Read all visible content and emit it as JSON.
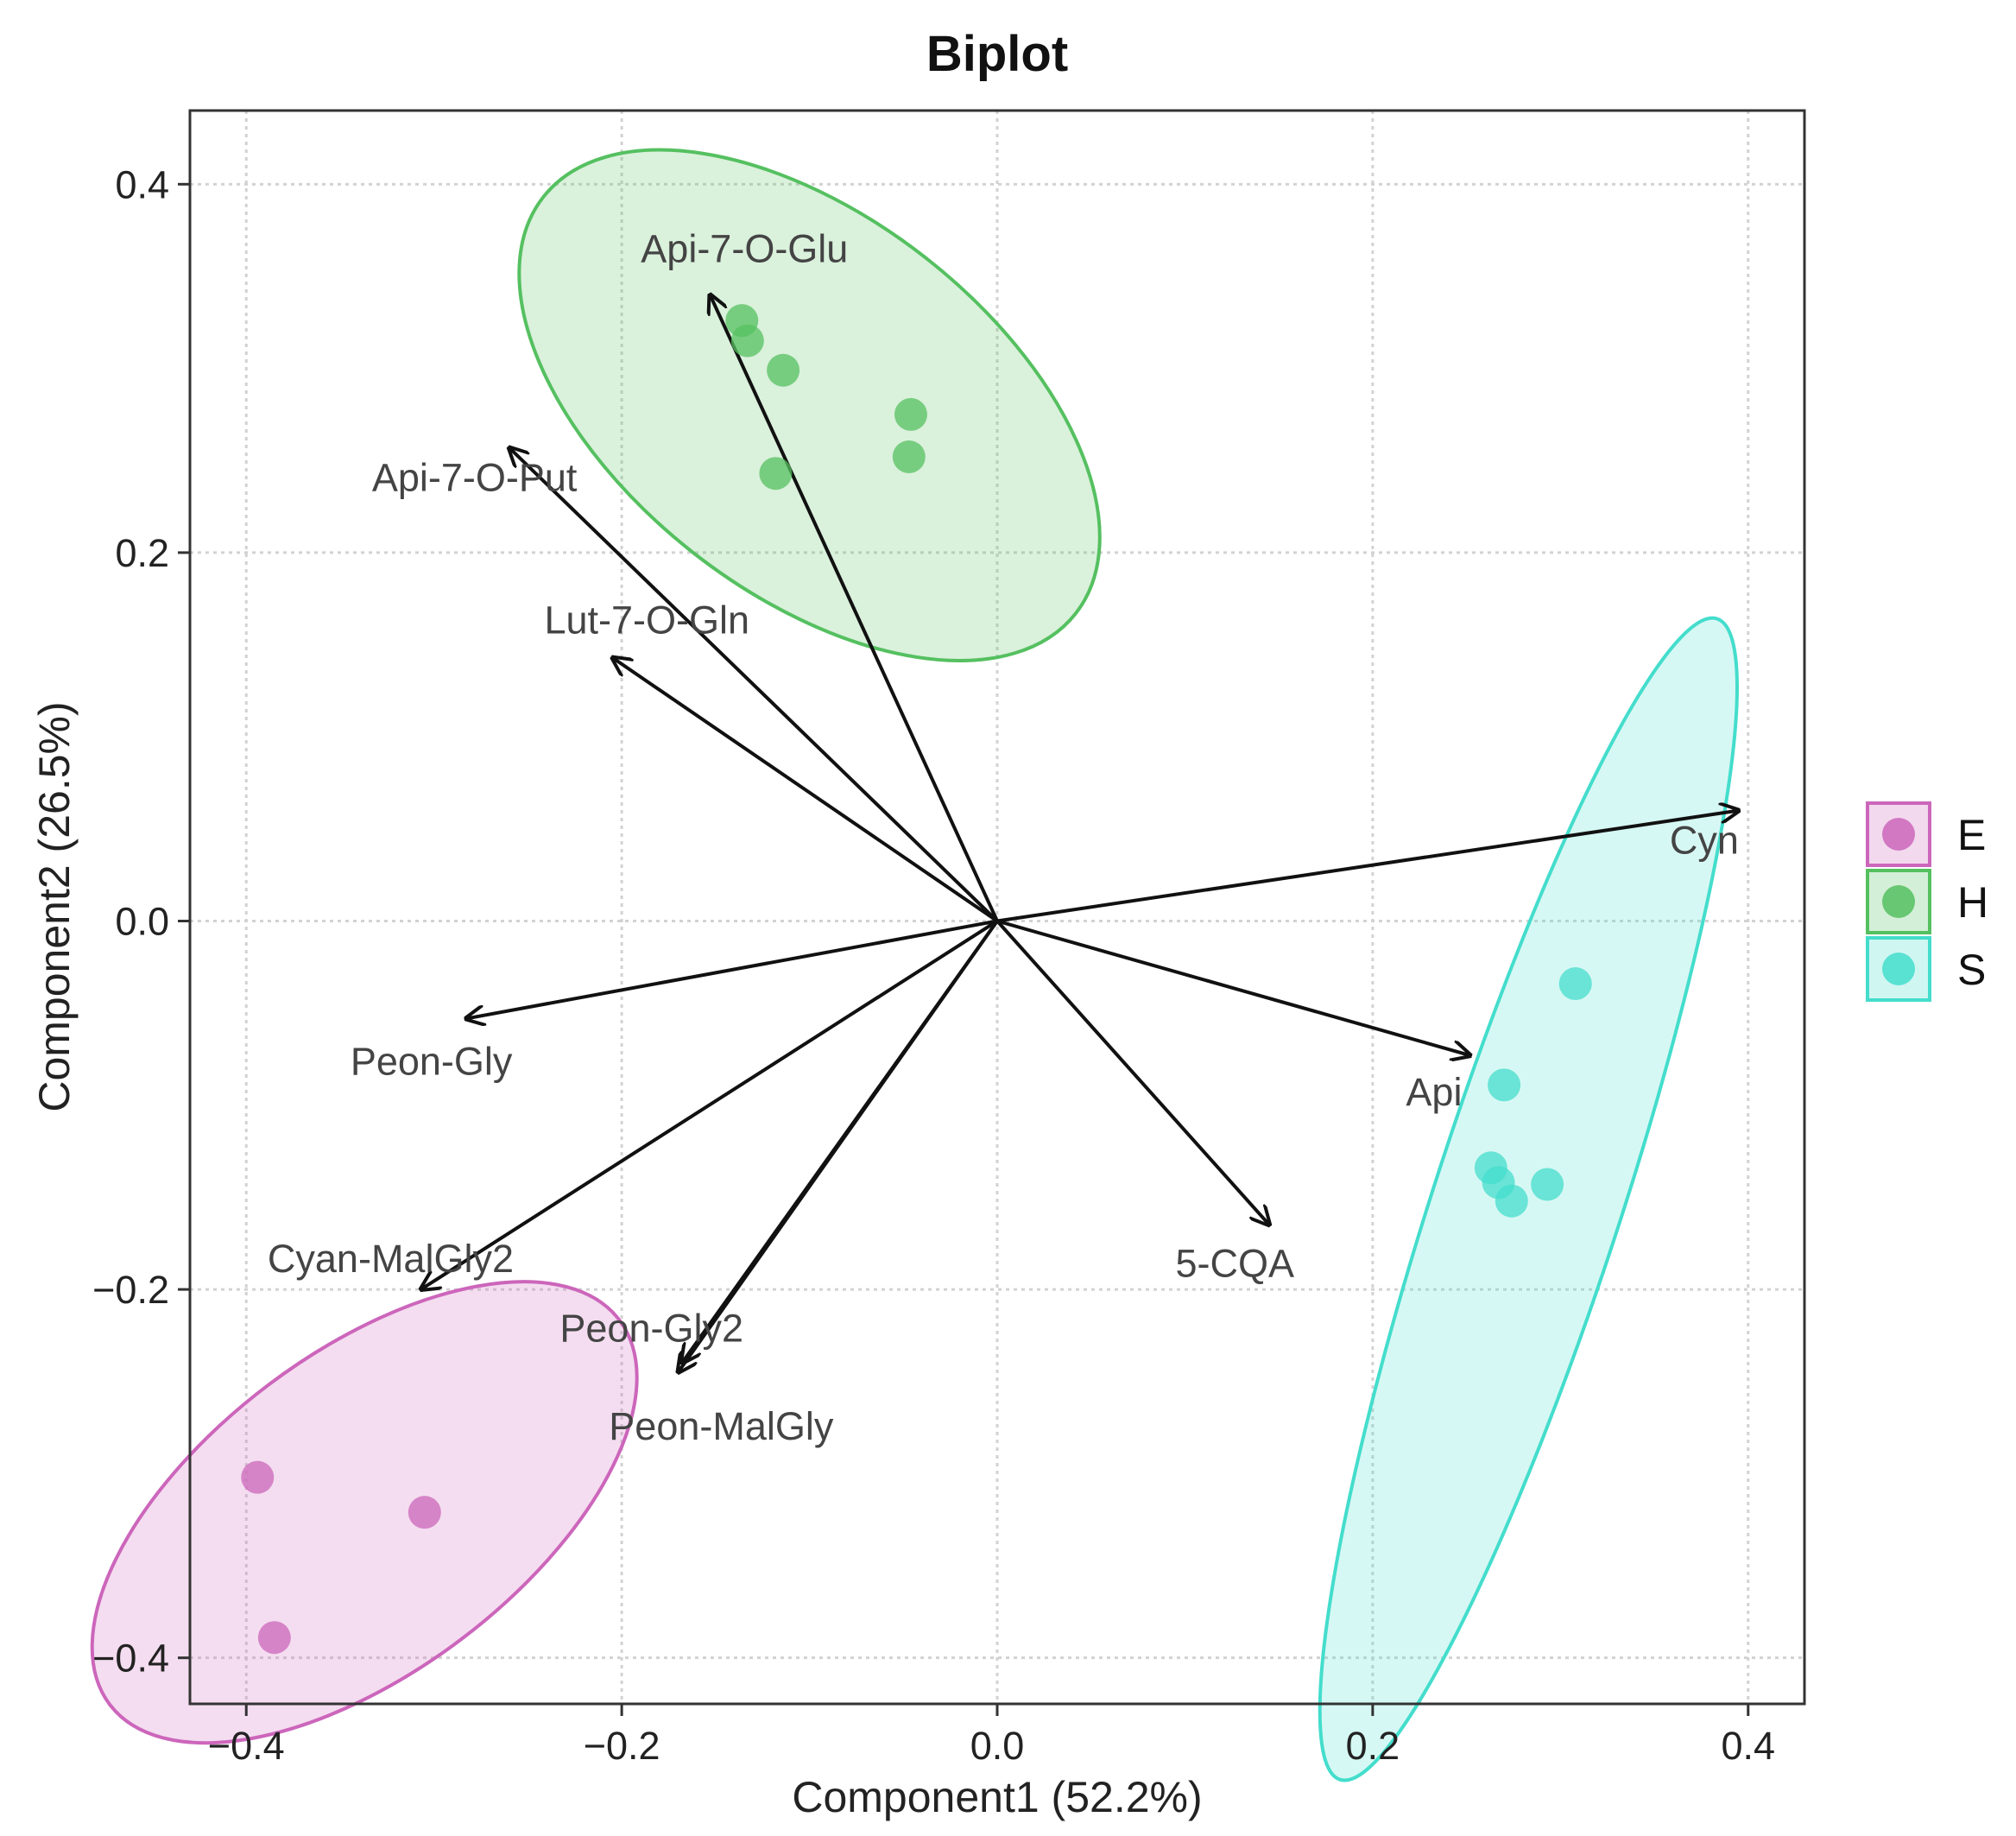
{
  "chart_data": {
    "type": "scatter",
    "title": "Biplot",
    "xlabel": "Component1 (52.2%)",
    "ylabel": "Component2 (26.5%)",
    "xlim": [
      -0.43,
      0.43
    ],
    "ylim": [
      -0.425,
      0.44
    ],
    "xticks": [
      -0.4,
      -0.2,
      0.0,
      0.2,
      0.4
    ],
    "yticks": [
      -0.4,
      -0.2,
      0.0,
      0.2,
      0.4
    ],
    "xtick_labels": [
      "−0.4",
      "−0.2",
      "0.0",
      "0.2",
      "0.4"
    ],
    "ytick_labels": [
      "−0.4",
      "−0.2",
      "0.0",
      "0.2",
      "0.4"
    ],
    "grid": true,
    "legend_position": "right",
    "series": [
      {
        "name": "E",
        "color": "#CC66BB",
        "points": [
          [
            -0.394,
            -0.302
          ],
          [
            -0.305,
            -0.321
          ],
          [
            -0.385,
            -0.389
          ]
        ],
        "ellipse": {
          "cx": -0.337,
          "cy": -0.321,
          "rx": 0.17,
          "ry": 0.085,
          "angle_deg": 37
        }
      },
      {
        "name": "H",
        "color": "#55C060",
        "points": [
          [
            -0.136,
            0.326
          ],
          [
            -0.133,
            0.315
          ],
          [
            -0.114,
            0.299
          ],
          [
            -0.046,
            0.275
          ],
          [
            -0.047,
            0.252
          ],
          [
            -0.118,
            0.243
          ]
        ],
        "ellipse": {
          "cx": -0.1,
          "cy": 0.28,
          "rx": 0.18,
          "ry": 0.1,
          "angle_deg": -38
        }
      },
      {
        "name": "S",
        "color": "#44DDCC",
        "points": [
          [
            0.308,
            -0.034
          ],
          [
            0.27,
            -0.089
          ],
          [
            0.263,
            -0.134
          ],
          [
            0.267,
            -0.142
          ],
          [
            0.274,
            -0.152
          ],
          [
            0.293,
            -0.143
          ]
        ],
        "ellipse": {
          "cx": 0.283,
          "cy": -0.151,
          "rx": 0.325,
          "ry": 0.05,
          "angle_deg": 72
        }
      }
    ],
    "loadings": [
      {
        "label": "Api-7-O-Glu",
        "x": -0.153,
        "y": 0.34
      },
      {
        "label": "Api-7-O-Put",
        "x": -0.26,
        "y": 0.257
      },
      {
        "label": "Lut-7-O-Gln",
        "x": -0.205,
        "y": 0.143
      },
      {
        "label": "Cyn",
        "x": 0.395,
        "y": 0.06
      },
      {
        "label": "Api",
        "x": 0.252,
        "y": -0.073
      },
      {
        "label": "Peon-Gly",
        "x": -0.283,
        "y": -0.053
      },
      {
        "label": "Cyan-MalGly2",
        "x": -0.307,
        "y": -0.2
      },
      {
        "label": "Peon-Gly2",
        "x": -0.168,
        "y": -0.24
      },
      {
        "label": "Peon-MalGly",
        "x": -0.17,
        "y": -0.245
      },
      {
        "label": "5-CQA",
        "x": 0.145,
        "y": -0.165
      }
    ]
  }
}
